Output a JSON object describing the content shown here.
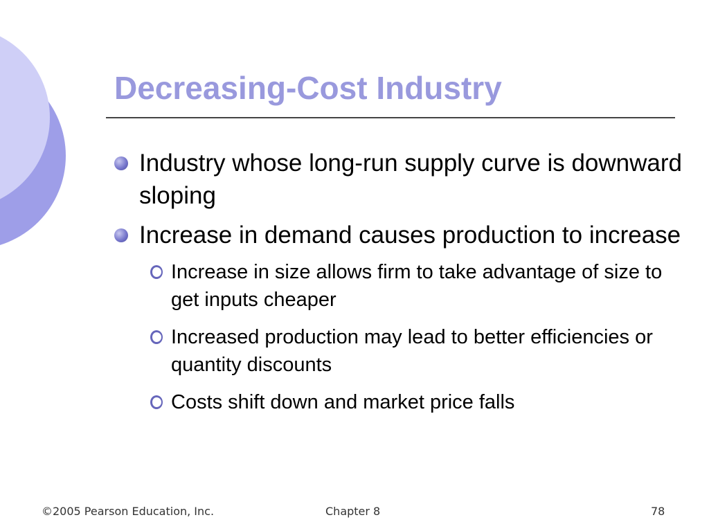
{
  "slide": {
    "title": "Decreasing-Cost Industry",
    "bullets": [
      {
        "text": "Industry whose long-run supply curve is downward sloping"
      },
      {
        "text": "Increase in demand causes production to increase"
      }
    ],
    "sub_bullets": [
      {
        "text": "Increase in size allows firm to take advantage of size to get inputs cheaper"
      },
      {
        "text": "Increased production may lead to better efficiencies or quantity discounts"
      },
      {
        "text": "Costs shift down and market price falls"
      }
    ]
  },
  "footer": {
    "copyright": "©2005 Pearson Education, Inc.",
    "chapter": "Chapter 8",
    "page_number": "78"
  },
  "colors": {
    "title": "#9999dd",
    "deco_light": "#ccccf5",
    "deco_mid": "#9999e8",
    "bullet": "#7777cc"
  }
}
